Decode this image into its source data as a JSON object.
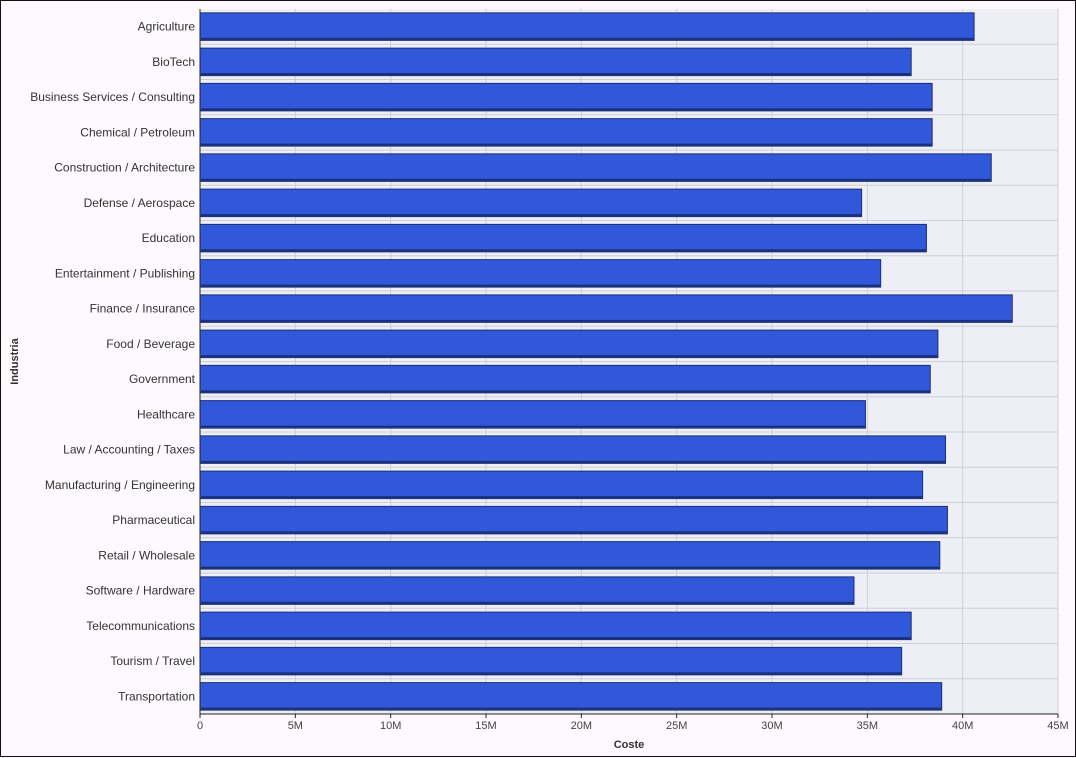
{
  "chart_data": {
    "type": "bar",
    "orientation": "horizontal",
    "xlabel": "Coste",
    "ylabel": "Industria",
    "xlim": [
      0,
      45000000
    ],
    "x_ticks": [
      0,
      5000000,
      10000000,
      15000000,
      20000000,
      25000000,
      30000000,
      35000000,
      40000000,
      45000000
    ],
    "x_tick_labels": [
      "0",
      "5M",
      "10M",
      "15M",
      "20M",
      "25M",
      "30M",
      "35M",
      "40M",
      "45M"
    ],
    "grid": true,
    "categories": [
      "Agriculture",
      "BioTech",
      "Business Services / Consulting",
      "Chemical / Petroleum",
      "Construction / Architecture",
      "Defense / Aerospace",
      "Education",
      "Entertainment / Publishing",
      "Finance / Insurance",
      "Food / Beverage",
      "Government",
      "Healthcare",
      "Law / Accounting / Taxes",
      "Manufacturing / Engineering",
      "Pharmaceutical",
      "Retail / Wholesale",
      "Software / Hardware",
      "Telecommunications",
      "Tourism / Travel",
      "Transportation"
    ],
    "values": [
      40600000,
      37300000,
      38400000,
      38400000,
      41500000,
      34700000,
      38100000,
      35700000,
      42600000,
      38700000,
      38300000,
      34900000,
      39100000,
      37900000,
      39200000,
      38800000,
      34300000,
      37300000,
      36800000,
      38900000
    ],
    "colors": {
      "bar": "#3158d8",
      "bar_edge": "#1a2f7a",
      "plot_bg": "#eeeef6",
      "grid": "#cfcfd8",
      "axis": "#222222"
    }
  }
}
